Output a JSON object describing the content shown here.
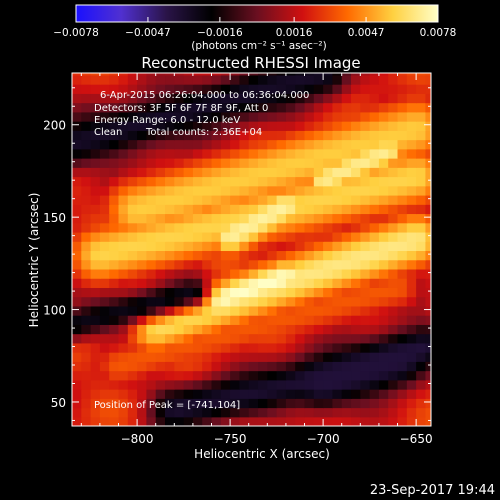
{
  "chart_data": {
    "type": "heatmap",
    "title": "Reconstructed RHESSI Image",
    "xlabel": "Heliocentric X (arcsec)",
    "ylabel": "Heliocentric Y (arcsec)",
    "xlim": [
      -835,
      -642
    ],
    "ylim": [
      37,
      228
    ],
    "x_ticks": [
      -800,
      -750,
      -700,
      -650
    ],
    "x_tick_labels": [
      "−800",
      "−750",
      "−700",
      "−650"
    ],
    "y_ticks": [
      50,
      100,
      150,
      200
    ],
    "y_tick_labels": [
      "50",
      "100",
      "150",
      "200"
    ],
    "colorbar": {
      "range": [
        -0.0078,
        0.0078
      ],
      "ticks": [
        -0.0078,
        -0.0047,
        -0.0016,
        0.0016,
        0.0047,
        0.0078
      ],
      "tick_labels": [
        "−0.0078",
        "−0.0047",
        "−0.0016",
        "0.0016",
        "0.0047",
        "0.0078"
      ],
      "unit_label": "(photons cm⁻² s⁻¹ asec⁻²)",
      "colors": [
        "#1a10ff",
        "#5030d0",
        "#2a1448",
        "#000000",
        "#6a0f20",
        "#d01010",
        "#ff6a00",
        "#ffd040",
        "#ffffc8"
      ]
    },
    "annotations": {
      "time_range": "6-Apr-2015 06:26:04.000 to 06:36:04.000",
      "detectors": "Detectors: 3F 5F 6F 7F 8F 9F, Att 0",
      "energy": "Energy Range: 6.0 - 12.0 keV",
      "clean": "Clean",
      "total_counts": "Total counts: 2.36E+04",
      "peak": "Position of Peak = [-741,104]"
    },
    "peak": {
      "x": -741,
      "y": 104,
      "value": 0.0078
    },
    "bands": [
      {
        "name": "",
        "x0": -800,
        "y0": 154,
        "x1": -650,
        "y1": 198,
        "width": 14,
        "value": 0.0058
      },
      {
        "name": "",
        "x0": -820,
        "y0": 130,
        "x1": -650,
        "y1": 172,
        "width": 13,
        "value": 0.006
      },
      {
        "name": "",
        "x0": -790,
        "y0": 92,
        "x1": -650,
        "y1": 138,
        "width": 12,
        "value": 0.0068
      },
      {
        "name": "",
        "x0": -810,
        "y0": 70,
        "x1": -660,
        "y1": 112,
        "width": 10,
        "value": 0.0035
      },
      {
        "name": "",
        "x0": -760,
        "y0": 104,
        "x1": -720,
        "y1": 118,
        "width": 8,
        "value": 0.0078
      },
      {
        "name": "",
        "x0": -750,
        "y0": 140,
        "x1": -720,
        "y1": 156,
        "width": 9,
        "value": 0.0072
      },
      {
        "name": "",
        "x0": -700,
        "y0": 170,
        "x1": -665,
        "y1": 186,
        "width": 8,
        "value": 0.007
      }
    ],
    "troughs": [
      {
        "x0": -835,
        "y0": 190,
        "x1": -700,
        "y1": 228,
        "width": 10,
        "value": -0.003
      },
      {
        "x0": -780,
        "y0": 46,
        "x1": -660,
        "y1": 72,
        "width": 9,
        "value": -0.0032
      },
      {
        "x0": -835,
        "y0": 92,
        "x1": -770,
        "y1": 110,
        "width": 6,
        "value": -0.0025
      },
      {
        "x0": -700,
        "y0": 60,
        "x1": -645,
        "y1": 80,
        "width": 9,
        "value": -0.0035
      }
    ],
    "grid": false
  },
  "footer": {
    "date": "23-Sep-2017 19:44"
  }
}
